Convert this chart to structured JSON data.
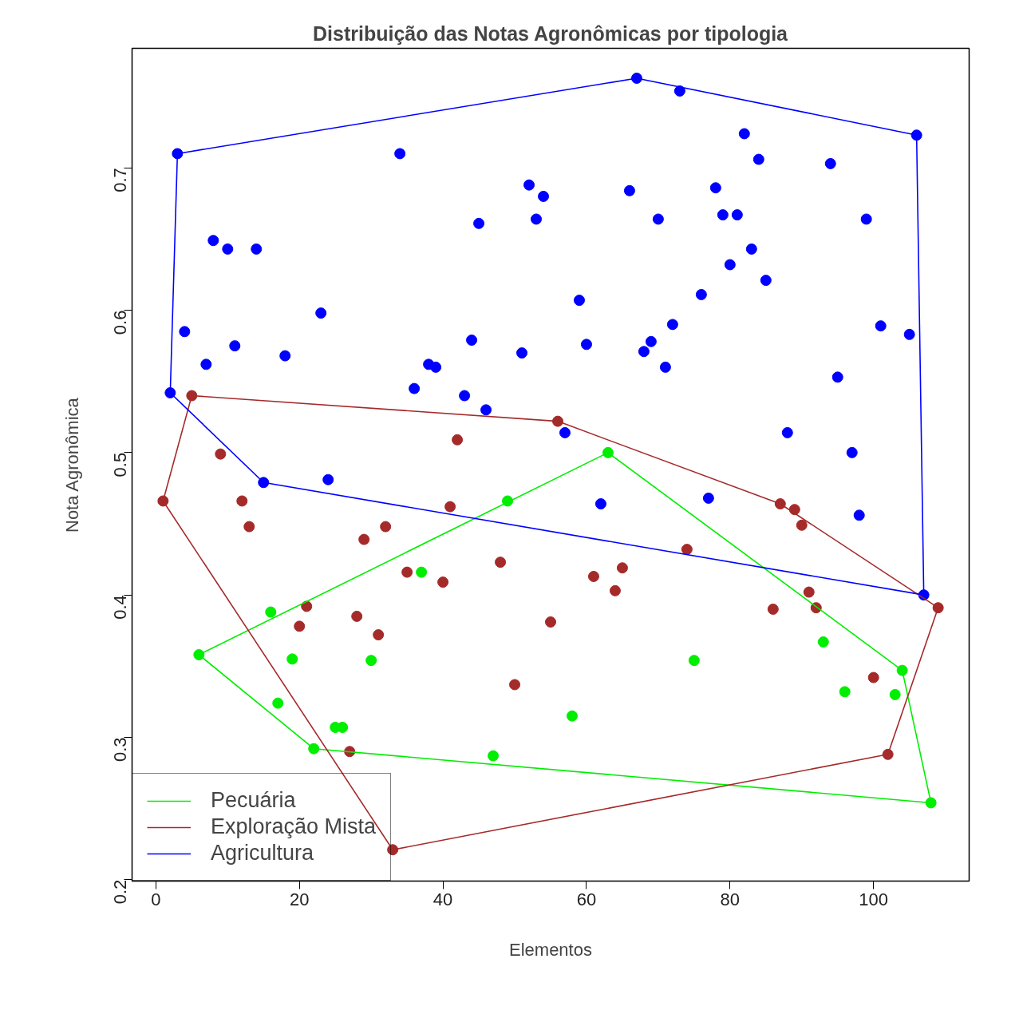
{
  "chart_data": {
    "type": "scatter",
    "title": "Distribuição das Notas Agronômicas por tipologia",
    "xlabel": "Elementos",
    "ylabel": "Nota Agronômica",
    "xlim": [
      -3.32,
      113.32
    ],
    "ylim": [
      0.199,
      0.784
    ],
    "xticks": [
      0,
      20,
      40,
      60,
      80,
      100
    ],
    "yticks": [
      0.2,
      0.3,
      0.4,
      0.5,
      0.6,
      0.7
    ],
    "grid": false,
    "legend": "bottom left",
    "marker": "circle",
    "series": [
      {
        "color": "#00ee00",
        "x": [
          6,
          16,
          17,
          19,
          22,
          25,
          26,
          30,
          37,
          47,
          49,
          58,
          63,
          75,
          93,
          96,
          103,
          104,
          108
        ],
        "values": [
          0.358,
          0.388,
          0.324,
          0.355,
          0.292,
          0.307,
          0.307,
          0.354,
          0.416,
          0.287,
          0.466,
          0.315,
          0.5,
          0.354,
          0.367,
          0.332,
          0.33,
          0.347,
          0.254
        ]
      },
      {
        "color": "#a52a2a",
        "x": [
          1,
          5,
          9,
          12,
          13,
          20,
          21,
          27,
          28,
          29,
          31,
          32,
          33,
          35,
          40,
          41,
          42,
          48,
          50,
          55,
          56,
          61,
          64,
          65,
          74,
          86,
          87,
          89,
          90,
          91,
          92,
          100,
          102,
          109
        ],
        "values": [
          0.466,
          0.54,
          0.499,
          0.466,
          0.448,
          0.378,
          0.392,
          0.29,
          0.385,
          0.439,
          0.372,
          0.448,
          0.221,
          0.416,
          0.409,
          0.462,
          0.509,
          0.423,
          0.337,
          0.381,
          0.522,
          0.413,
          0.403,
          0.419,
          0.432,
          0.39,
          0.464,
          0.46,
          0.449,
          0.402,
          0.391,
          0.342,
          0.288,
          0.391
        ]
      },
      {
        "color": "#0000ff",
        "x": [
          2,
          3,
          4,
          7,
          8,
          10,
          11,
          14,
          15,
          18,
          23,
          24,
          34,
          36,
          38,
          39,
          43,
          44,
          45,
          46,
          51,
          52,
          53,
          54,
          57,
          59,
          60,
          62,
          66,
          67,
          68,
          69,
          70,
          71,
          72,
          73,
          76,
          77,
          78,
          79,
          80,
          81,
          82,
          83,
          84,
          85,
          88,
          94,
          95,
          97,
          98,
          99,
          101,
          105,
          106,
          107
        ],
        "values": [
          0.542,
          0.71,
          0.585,
          0.562,
          0.649,
          0.643,
          0.575,
          0.643,
          0.479,
          0.568,
          0.598,
          0.481,
          0.71,
          0.545,
          0.562,
          0.56,
          0.54,
          0.579,
          0.661,
          0.53,
          0.57,
          0.688,
          0.664,
          0.68,
          0.514,
          0.607,
          0.576,
          0.464,
          0.684,
          0.763,
          0.571,
          0.578,
          0.664,
          0.56,
          0.59,
          0.754,
          0.611,
          0.468,
          0.686,
          0.667,
          0.632,
          0.667,
          0.724,
          0.643,
          0.706,
          0.621,
          0.514,
          0.703,
          0.553,
          0.5,
          0.456,
          0.664,
          0.589,
          0.583,
          0.723,
          0.4
        ]
      },
      {
        "type": "line",
        "marker": "none",
        "name": "Pecuária",
        "color": "#00ee00",
        "x": [
          6,
          63,
          104,
          108
        ],
        "values": [
          0.358,
          0.5,
          0.347,
          0.254
        ]
      },
      {
        "type": "line",
        "marker": "none",
        "color": "#00ee00",
        "x": [
          6,
          22,
          108
        ],
        "values": [
          0.358,
          0.292,
          0.254
        ]
      },
      {
        "type": "line",
        "marker": "none",
        "name": "Exploração Mista",
        "color": "#a52a2a",
        "x": [
          1,
          5,
          56,
          87,
          109
        ],
        "values": [
          0.466,
          0.54,
          0.522,
          0.464,
          0.391
        ]
      },
      {
        "type": "line",
        "marker": "none",
        "color": "#a52a2a",
        "x": [
          1,
          33,
          102,
          109
        ],
        "values": [
          0.466,
          0.221,
          0.288,
          0.391
        ]
      },
      {
        "type": "line",
        "marker": "none",
        "name": "Agricultura",
        "color": "#0000ff",
        "x": [
          2,
          3,
          67,
          106,
          107
        ],
        "values": [
          0.542,
          0.71,
          0.763,
          0.723,
          0.4
        ]
      },
      {
        "type": "line",
        "marker": "none",
        "color": "#0000ff",
        "x": [
          2,
          15,
          107
        ],
        "values": [
          0.542,
          0.479,
          0.4
        ]
      }
    ]
  }
}
